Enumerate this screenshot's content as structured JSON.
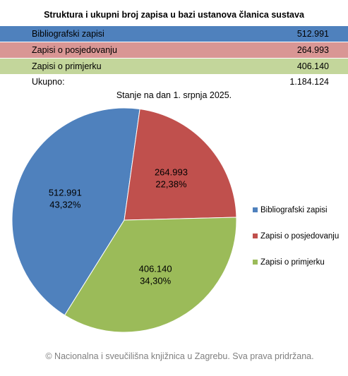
{
  "title": "Struktura i ukupni broj zapisa u bazi ustanova članica sustava",
  "table": {
    "rows": [
      {
        "label": "Bibliografski zapisi",
        "value": "512.991"
      },
      {
        "label": "Zapisi o posjedovanju",
        "value": "264.993"
      },
      {
        "label": "Zapisi o primjerku",
        "value": "406.140"
      }
    ],
    "total": {
      "label": "Ukupno:",
      "value": "1.184.124"
    }
  },
  "subtitle": "Stanje na dan 1. srpnja 2025.",
  "footer": "© Nacionalna i sveučilišna knjižnica u Zagrebu. Sva prava pridržana.",
  "colors": {
    "blue": "#4f81bd",
    "red": "#c0504d",
    "green": "#9bbb59",
    "row_blue": "#4f81bd",
    "row_red": "#d99694",
    "row_green": "#c3d69b"
  },
  "chart_data": {
    "type": "pie",
    "title": "",
    "categories": [
      "Bibliografski zapisi",
      "Zapisi o posjedovanju",
      "Zapisi o primjerku"
    ],
    "values": [
      512991,
      264993,
      406140
    ],
    "value_labels": [
      "512.991",
      "264.993",
      "406.140"
    ],
    "percent_labels": [
      "43,32%",
      "22,38%",
      "34,30%"
    ],
    "colors": [
      "#4f81bd",
      "#c0504d",
      "#9bbb59"
    ],
    "legend_position": "right"
  }
}
